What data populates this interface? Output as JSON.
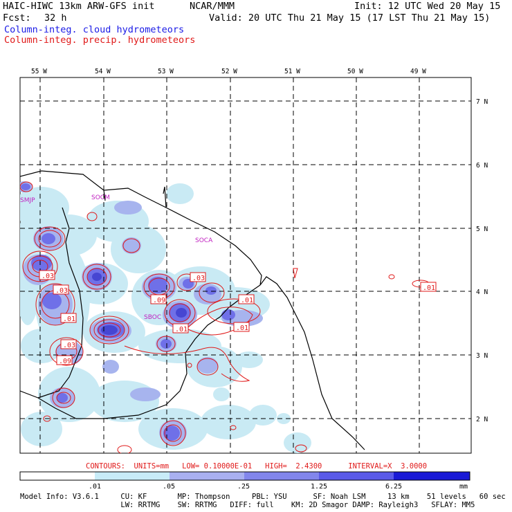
{
  "header": {
    "model_title": "HAIC-HIWC 13km ARW-GFS init",
    "org": "NCAR/MMM",
    "init": "Init: 12 UTC Wed 20 May 15",
    "fcst_label": "Fcst:",
    "fcst_value": "32 h",
    "valid": "Valid: 20 UTC Thu 21 May 15 (17 LST Thu 21 May 15)",
    "field1": "Column-integ. cloud hydrometeors",
    "field2": "Column-integ. precip. hydrometeors"
  },
  "map": {
    "lon_labels": [
      "55 W",
      "54 W",
      "53 W",
      "52 W",
      "51 W",
      "50 W",
      "49 W"
    ],
    "lat_labels": [
      "7 N",
      "6 N",
      "5 N",
      "4 N",
      "3 N",
      "2 N"
    ],
    "station_labels": [
      "SMJP",
      "SOCM",
      "SOCA",
      "SBOC"
    ],
    "contour_labels": [
      ".03",
      ".03",
      ".03",
      ".01",
      ".03",
      ".09",
      ".09",
      ".01",
      ".01",
      ".01",
      ".01"
    ],
    "colors": {
      "cloud_fill": [
        "#c9eaf4",
        "#a7b4ee",
        "#6f70e8",
        "#4646d2"
      ],
      "precip_contour": "#e01818",
      "coast": "#000000",
      "grid": "#000000",
      "station": "#c020c0"
    }
  },
  "contours_info": "CONTOURS:  UNITS=mm   LOW= 0.10000E-01   HIGH=  2.4300      INTERVAL=X  3.0000",
  "colorbar": {
    "ticks": [
      ".01",
      ".05",
      ".25",
      "1.25",
      "6.25"
    ],
    "units": "mm",
    "colors": [
      "#ffffff",
      "#c8ecf8",
      "#a9b0f0",
      "#8286ec",
      "#5a5ae8",
      "#1a1ad6"
    ]
  },
  "footer": {
    "line1": "Model Info: V3.6.1     CU: KF       MP: Thompson     PBL: YSU      SF: Noah LSM     13 km    51 levels   60 sec",
    "line2": "                       LW: RRTMG    SW: RRTMG   DIFF: full    KM: 2D Smagor DAMP: Rayleigh3   SFLAY: MM5"
  }
}
